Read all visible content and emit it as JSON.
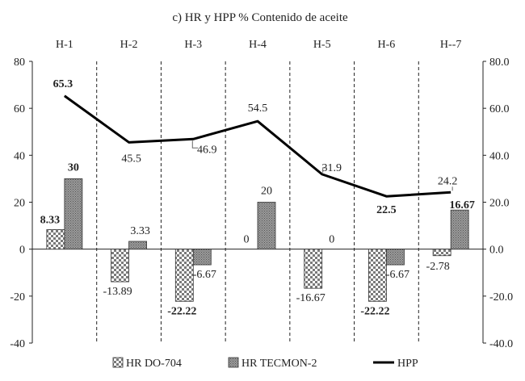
{
  "chart_data": {
    "type": "bar",
    "title": "c) HR y HPP % Contenido de aceite",
    "categories": [
      "H-1",
      "H-2",
      "H-3",
      "H-4",
      "H-5",
      "H-6",
      "H--7"
    ],
    "ylim": [
      -40,
      80
    ],
    "y_ticks": [
      "-40",
      "-20",
      "0",
      "20",
      "40",
      "60",
      "80"
    ],
    "y2lim": [
      -40,
      80
    ],
    "y2_ticks": [
      "-40.0",
      "-20.0",
      "0.0",
      "20.0",
      "40.0",
      "60.0",
      "80.0"
    ],
    "grid": false,
    "legend_position": "bottom",
    "series": [
      {
        "name": "HR DO-704",
        "kind": "bar",
        "pattern": "checker",
        "values": [
          8.33,
          -13.89,
          -22.22,
          0,
          -16.67,
          -22.22,
          -2.78
        ],
        "labels": [
          "8.33",
          "-13.89",
          "-22.22",
          "0",
          "-16.67",
          "-22.22",
          "-2.78"
        ],
        "bold": [
          true,
          false,
          true,
          false,
          false,
          true,
          false
        ]
      },
      {
        "name": "HR TECMON-2",
        "kind": "bar",
        "pattern": "hatch",
        "values": [
          30,
          3.33,
          -6.67,
          20,
          0,
          -6.67,
          16.67
        ],
        "labels": [
          "30",
          "3.33",
          "-6.67",
          "20",
          "0",
          "-6.67",
          "16.67"
        ],
        "bold": [
          true,
          false,
          false,
          false,
          false,
          false,
          true
        ]
      },
      {
        "name": "HPP",
        "kind": "line",
        "values": [
          65.3,
          45.5,
          46.9,
          54.5,
          31.9,
          22.5,
          24.2
        ],
        "labels": [
          "65.3",
          "45.5",
          "46.9",
          "54.5",
          "31.9",
          "22.5",
          "24.2"
        ],
        "bold": [
          true,
          false,
          false,
          false,
          false,
          true,
          false
        ]
      }
    ]
  }
}
